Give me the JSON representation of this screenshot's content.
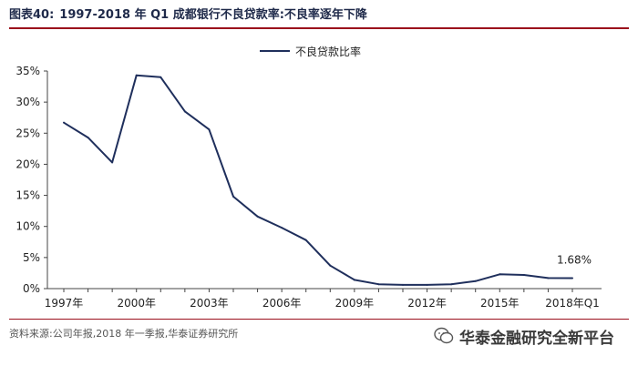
{
  "header": {
    "figure_label": "图表40:",
    "title": "1997-2018 年 Q1 成都银行不良贷款率:不良率逐年下降"
  },
  "footer": {
    "source": "资料来源:公司年报,2018 年一季报,华泰证券研究所",
    "watermark": "华泰金融研究全新平台"
  },
  "colors": {
    "line": "#1f2f5c",
    "accent_rule": "#9b0f1c",
    "axis": "#444444",
    "text": "#222222"
  },
  "chart_data": {
    "type": "line",
    "title": "1997-2018 年 Q1 成都银行不良贷款率:不良率逐年下降",
    "xlabel": "",
    "ylabel": "",
    "legend_position": "top-center",
    "grid": false,
    "categories": [
      "1997年",
      "1998年",
      "1999年",
      "2000年",
      "2001年",
      "2002年",
      "2003年",
      "2004年",
      "2005年",
      "2006年",
      "2007年",
      "2008年",
      "2009年",
      "2010年",
      "2011年",
      "2012年",
      "2013年",
      "2014年",
      "2015年",
      "2016年",
      "2017年",
      "2018年Q1"
    ],
    "x_tick_labels": [
      "1997年",
      "2000年",
      "2003年",
      "2006年",
      "2009年",
      "2012年",
      "2015年",
      "2018年Q1"
    ],
    "y_tick_labels": [
      "0%",
      "5%",
      "10%",
      "15%",
      "20%",
      "25%",
      "30%",
      "35%"
    ],
    "ylim": [
      0,
      35
    ],
    "series": [
      {
        "name": "不良贷款比率",
        "values": [
          26.7,
          24.3,
          20.3,
          34.3,
          34.0,
          28.5,
          25.6,
          14.8,
          11.6,
          9.8,
          7.8,
          3.7,
          1.4,
          0.7,
          0.6,
          0.6,
          0.7,
          1.2,
          2.3,
          2.2,
          1.7,
          1.68
        ]
      }
    ],
    "annotations": [
      {
        "text": "1.68%",
        "category": "2018年Q1"
      }
    ]
  }
}
